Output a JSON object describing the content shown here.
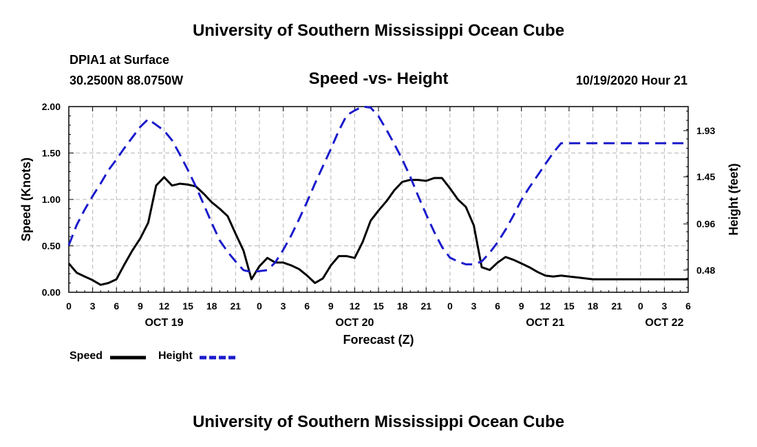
{
  "header": {
    "title": "University of Southern Mississippi Ocean Cube",
    "station": "DPIA1 at Surface",
    "coords": "30.2500N 88.0750W",
    "subtitle": "Speed -vs- Height",
    "datetime": "10/19/2020 Hour 21"
  },
  "footer": {
    "title": "University of Southern Mississippi Ocean Cube"
  },
  "legend": {
    "speed": "Speed",
    "height": "Height"
  },
  "chart_data": {
    "type": "line",
    "title": "Speed -vs- Height",
    "xlabel": "Forecast (Z)",
    "ylabel": "Speed (Knots)",
    "y2label": "Height (feet)",
    "xlim": [
      0,
      78
    ],
    "ylim": [
      0,
      2.0
    ],
    "y2lim": [
      0.25,
      2.18
    ],
    "grid": true,
    "legend_position": "bottom-left",
    "x_tick_hours": [
      0,
      3,
      6,
      9,
      12,
      15,
      18,
      21,
      24,
      27,
      30,
      33,
      36,
      39,
      42,
      45,
      48,
      51,
      54,
      57,
      60,
      63,
      66,
      69,
      72,
      75,
      78
    ],
    "x_tick_labels": [
      "0",
      "3",
      "6",
      "9",
      "12",
      "15",
      "18",
      "21",
      "0",
      "3",
      "6",
      "9",
      "12",
      "15",
      "18",
      "21",
      "0",
      "3",
      "6",
      "9",
      "12",
      "15",
      "18",
      "21",
      "0",
      "3",
      "6"
    ],
    "date_labels": [
      {
        "label": "OCT 19",
        "hour": 12
      },
      {
        "label": "OCT 20",
        "hour": 36
      },
      {
        "label": "OCT 21",
        "hour": 60
      },
      {
        "label": "OCT 22",
        "hour": 75
      }
    ],
    "y_ticks": [
      "0.00",
      "0.50",
      "1.00",
      "1.50",
      "2.00"
    ],
    "y_tick_values": [
      0,
      0.5,
      1.0,
      1.5,
      2.0
    ],
    "y2_ticks": [
      "0.48",
      "0.96",
      "1.45",
      "1.93"
    ],
    "y2_tick_values": [
      0.48,
      0.96,
      1.45,
      1.93
    ],
    "series": [
      {
        "name": "Speed",
        "axis": "left",
        "color": "#000000",
        "style": "solid",
        "x": [
          0,
          1,
          2,
          3,
          4,
          5,
          6,
          7,
          8,
          9,
          10,
          11,
          12,
          13,
          14,
          15,
          16,
          17,
          18,
          19,
          20,
          21,
          22,
          23,
          24,
          25,
          26,
          27,
          28,
          29,
          30,
          31,
          32,
          33,
          34,
          35,
          36,
          37,
          38,
          39,
          40,
          41,
          42,
          43,
          44,
          45,
          46,
          47,
          48,
          49,
          50,
          51,
          52,
          53,
          54,
          55,
          56,
          57,
          58,
          59,
          60,
          61,
          62,
          63,
          64,
          65,
          66,
          67,
          68,
          69,
          70,
          71,
          72,
          73,
          74,
          75,
          76,
          77,
          78
        ],
        "values": [
          0.31,
          0.21,
          0.17,
          0.13,
          0.08,
          0.1,
          0.14,
          0.3,
          0.45,
          0.58,
          0.75,
          1.15,
          1.24,
          1.15,
          1.17,
          1.16,
          1.14,
          1.06,
          0.97,
          0.9,
          0.82,
          0.63,
          0.45,
          0.14,
          0.28,
          0.37,
          0.32,
          0.32,
          0.29,
          0.25,
          0.18,
          0.1,
          0.15,
          0.29,
          0.39,
          0.39,
          0.37,
          0.54,
          0.77,
          0.88,
          0.98,
          1.1,
          1.19,
          1.21,
          1.21,
          1.2,
          1.23,
          1.23,
          1.12,
          1.0,
          0.92,
          0.72,
          0.27,
          0.24,
          0.32,
          0.38,
          0.35,
          0.31,
          0.27,
          0.22,
          0.18,
          0.17,
          0.18,
          0.17,
          0.16,
          0.15,
          0.14,
          0.14,
          0.14,
          0.14,
          0.14,
          0.14,
          0.14,
          0.14,
          0.14,
          0.14,
          0.14,
          0.14,
          0.14
        ]
      },
      {
        "name": "Height",
        "axis": "right",
        "color": "#1a1acc",
        "style": "dashed",
        "x": [
          0,
          1,
          2,
          3,
          4,
          5,
          6,
          7,
          8,
          9,
          10,
          11,
          12,
          13,
          14,
          15,
          16,
          17,
          18,
          19,
          20,
          21,
          22,
          23,
          24,
          25,
          26,
          27,
          28,
          29,
          30,
          31,
          32,
          33,
          34,
          35,
          36,
          37,
          38,
          39,
          40,
          41,
          42,
          43,
          44,
          45,
          46,
          47,
          48,
          49,
          50,
          51,
          52,
          53,
          54,
          55,
          56,
          57,
          58,
          59,
          60,
          61,
          62,
          63,
          64,
          65,
          66,
          67,
          68,
          69,
          70,
          71,
          72,
          73,
          74,
          75,
          76,
          77,
          78
        ],
        "values": [
          0.74,
          0.95,
          1.11,
          1.25,
          1.38,
          1.52,
          1.63,
          1.75,
          1.86,
          1.97,
          2.05,
          1.99,
          1.93,
          1.83,
          1.68,
          1.52,
          1.35,
          1.16,
          0.97,
          0.79,
          0.67,
          0.57,
          0.48,
          0.46,
          0.47,
          0.48,
          0.56,
          0.69,
          0.84,
          1.01,
          1.19,
          1.38,
          1.56,
          1.74,
          1.93,
          2.09,
          2.14,
          2.18,
          2.17,
          2.08,
          1.94,
          1.79,
          1.63,
          1.45,
          1.25,
          1.06,
          0.88,
          0.72,
          0.61,
          0.57,
          0.54,
          0.54,
          0.57,
          0.66,
          0.77,
          0.9,
          1.05,
          1.21,
          1.34,
          1.46,
          1.58,
          1.7,
          1.8,
          1.8,
          1.8,
          1.8,
          1.8,
          1.8,
          1.8,
          1.8,
          1.8,
          1.8,
          1.8,
          1.8,
          1.8,
          1.8,
          1.8,
          1.8,
          1.8
        ]
      }
    ]
  }
}
